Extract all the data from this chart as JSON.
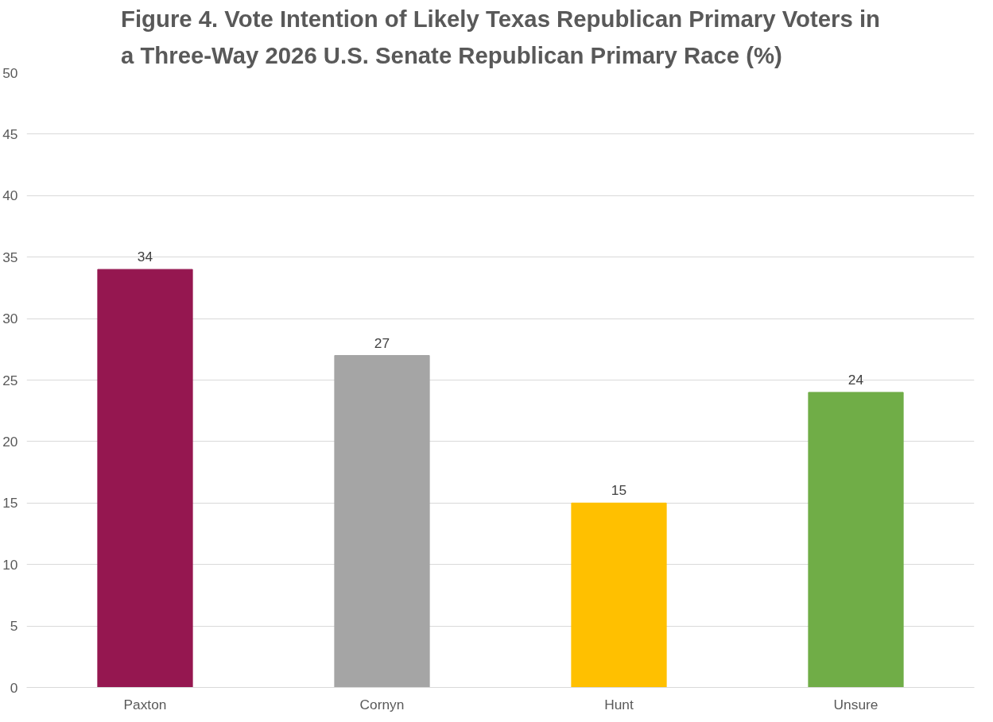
{
  "chart_data": {
    "type": "bar",
    "title": "Figure 4. Vote Intention of Likely Texas Republican Primary Voters in\na Three-Way 2026 U.S. Senate Republican Primary Race (%)",
    "categories": [
      "Paxton",
      "Cornyn",
      "Hunt",
      "Unsure"
    ],
    "values": [
      34,
      27,
      15,
      24
    ],
    "colors": [
      "#951750",
      "#a5a5a5",
      "#ffc000",
      "#70ad47"
    ],
    "ylim": [
      0,
      50
    ],
    "yticks": [
      0,
      5,
      10,
      15,
      20,
      25,
      30,
      35,
      40,
      45,
      50
    ],
    "grid": "y",
    "data_labels": true
  }
}
